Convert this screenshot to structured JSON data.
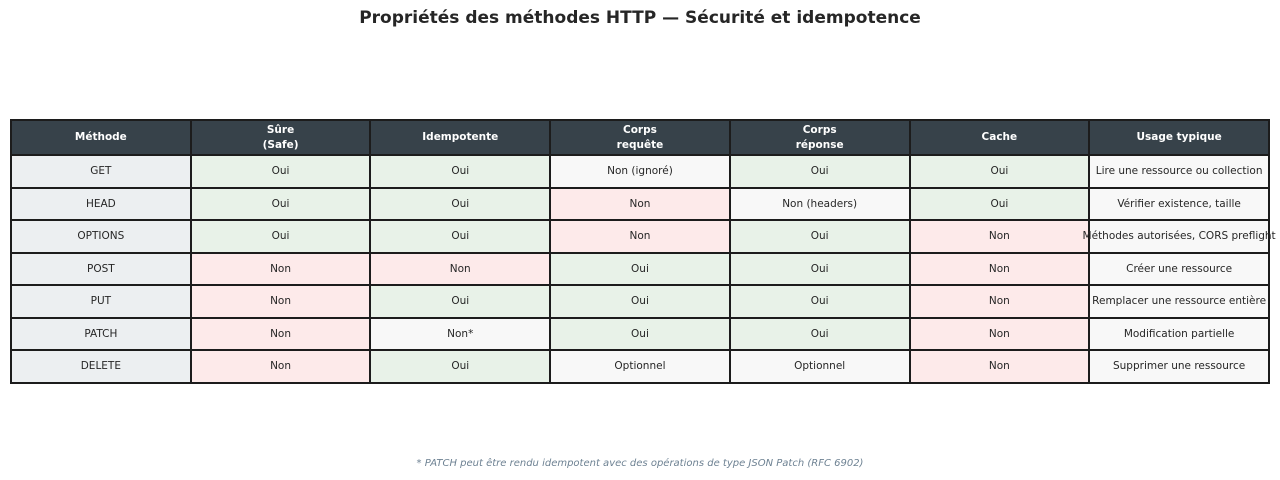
{
  "title": "Propriétés des méthodes HTTP — Sécurité et idempotence",
  "footnote": "* PATCH peut être rendu idempotent avec des opérations de type JSON Patch (RFC 6902)",
  "colors": {
    "header_bg": "#37424a",
    "header_text": "#ffffff",
    "method_col_bg": "#eceff1",
    "yes_bg": "#e8f2e8",
    "no_bg": "#fdeaea",
    "neutral_bg": "#f8f8f8",
    "border": "#1c1c1c",
    "footnote_text": "#6e8293"
  },
  "chart_data": {
    "type": "table",
    "columns": [
      {
        "label": "Méthode"
      },
      {
        "label": "Sûre\n(Safe)"
      },
      {
        "label": "Idempotente"
      },
      {
        "label": "Corps\nrequête"
      },
      {
        "label": "Corps\nréponse"
      },
      {
        "label": "Cache"
      },
      {
        "label": "Usage typique"
      }
    ],
    "rows": [
      {
        "method": "GET",
        "cells": [
          {
            "text": "Oui",
            "state": "yes"
          },
          {
            "text": "Oui",
            "state": "yes"
          },
          {
            "text": "Non (ignoré)",
            "state": "neutral"
          },
          {
            "text": "Oui",
            "state": "yes"
          },
          {
            "text": "Oui",
            "state": "yes"
          },
          {
            "text": "Lire une ressource ou collection",
            "state": "neutral"
          }
        ]
      },
      {
        "method": "HEAD",
        "cells": [
          {
            "text": "Oui",
            "state": "yes"
          },
          {
            "text": "Oui",
            "state": "yes"
          },
          {
            "text": "Non",
            "state": "no"
          },
          {
            "text": "Non (headers)",
            "state": "neutral"
          },
          {
            "text": "Oui",
            "state": "yes"
          },
          {
            "text": "Vérifier existence, taille",
            "state": "neutral"
          }
        ]
      },
      {
        "method": "OPTIONS",
        "cells": [
          {
            "text": "Oui",
            "state": "yes"
          },
          {
            "text": "Oui",
            "state": "yes"
          },
          {
            "text": "Non",
            "state": "no"
          },
          {
            "text": "Oui",
            "state": "yes"
          },
          {
            "text": "Non",
            "state": "no"
          },
          {
            "text": "Méthodes autorisées, CORS preflight",
            "state": "neutral"
          }
        ]
      },
      {
        "method": "POST",
        "cells": [
          {
            "text": "Non",
            "state": "no"
          },
          {
            "text": "Non",
            "state": "no"
          },
          {
            "text": "Oui",
            "state": "yes"
          },
          {
            "text": "Oui",
            "state": "yes"
          },
          {
            "text": "Non",
            "state": "no"
          },
          {
            "text": "Créer une ressource",
            "state": "neutral"
          }
        ]
      },
      {
        "method": "PUT",
        "cells": [
          {
            "text": "Non",
            "state": "no"
          },
          {
            "text": "Oui",
            "state": "yes"
          },
          {
            "text": "Oui",
            "state": "yes"
          },
          {
            "text": "Oui",
            "state": "yes"
          },
          {
            "text": "Non",
            "state": "no"
          },
          {
            "text": "Remplacer une ressource entière",
            "state": "neutral"
          }
        ]
      },
      {
        "method": "PATCH",
        "cells": [
          {
            "text": "Non",
            "state": "no"
          },
          {
            "text": "Non*",
            "state": "neutral"
          },
          {
            "text": "Oui",
            "state": "yes"
          },
          {
            "text": "Oui",
            "state": "yes"
          },
          {
            "text": "Non",
            "state": "no"
          },
          {
            "text": "Modification partielle",
            "state": "neutral"
          }
        ]
      },
      {
        "method": "DELETE",
        "cells": [
          {
            "text": "Non",
            "state": "no"
          },
          {
            "text": "Oui",
            "state": "yes"
          },
          {
            "text": "Optionnel",
            "state": "neutral"
          },
          {
            "text": "Optionnel",
            "state": "neutral"
          },
          {
            "text": "Non",
            "state": "no"
          },
          {
            "text": "Supprimer une ressource",
            "state": "neutral"
          }
        ]
      }
    ]
  }
}
